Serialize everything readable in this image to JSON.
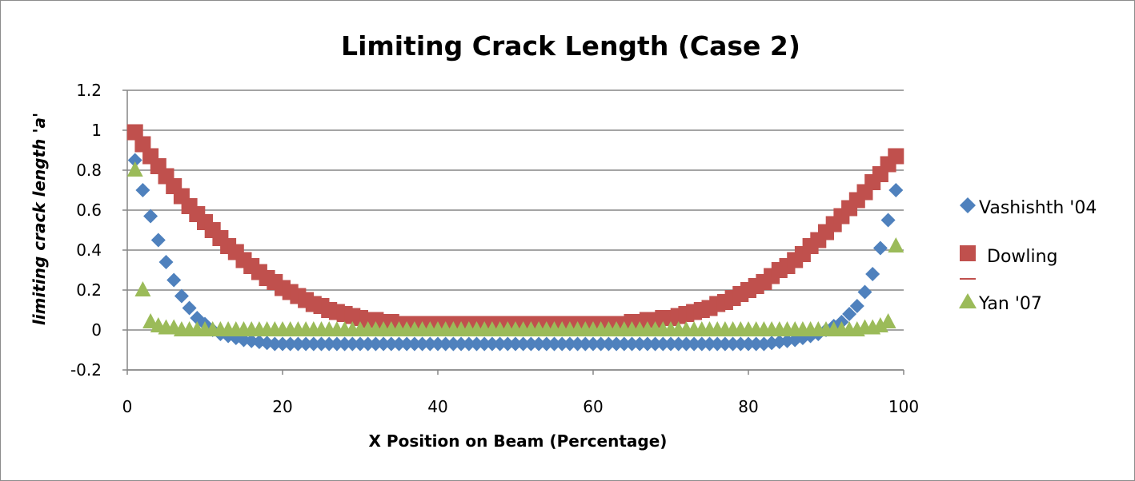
{
  "chart_data": {
    "type": "scatter",
    "title": "Limiting Crack Length (Case 2)",
    "xlabel": "X Position on Beam (Percentage)",
    "ylabel": "limiting crack length 'a'",
    "xlim": [
      0,
      100
    ],
    "ylim": [
      -0.2,
      1.2
    ],
    "x_ticks": [
      "0",
      "20",
      "40",
      "60",
      "80",
      "100"
    ],
    "y_ticks": [
      "1.2",
      "1",
      "0.8",
      "0.6",
      "0.4",
      "0.2",
      "0",
      "-0.2"
    ],
    "grid": "horizontal",
    "legend_position": "right",
    "colors": {
      "vashishth": "#4f81bd",
      "dowling": "#c0504d",
      "yan": "#9bbb59",
      "grid": "#868686"
    },
    "series": [
      {
        "name": "Vashishth '04",
        "marker": "diamond",
        "x": [
          1,
          2,
          3,
          4,
          5,
          6,
          7,
          8,
          9,
          10,
          11,
          12,
          13,
          14,
          15,
          16,
          17,
          18,
          19,
          20,
          21,
          22,
          23,
          24,
          25,
          26,
          27,
          28,
          29,
          30,
          31,
          32,
          33,
          34,
          35,
          36,
          37,
          38,
          39,
          40,
          41,
          42,
          43,
          44,
          45,
          46,
          47,
          48,
          49,
          50,
          51,
          52,
          53,
          54,
          55,
          56,
          57,
          58,
          59,
          60,
          61,
          62,
          63,
          64,
          65,
          66,
          67,
          68,
          69,
          70,
          71,
          72,
          73,
          74,
          75,
          76,
          77,
          78,
          79,
          80,
          81,
          82,
          83,
          84,
          85,
          86,
          87,
          88,
          89,
          90,
          91,
          92,
          93,
          94,
          95,
          96,
          97,
          98,
          99
        ],
        "y": [
          0.85,
          0.7,
          0.57,
          0.45,
          0.34,
          0.25,
          0.17,
          0.11,
          0.06,
          0.03,
          0.0,
          -0.02,
          -0.03,
          -0.04,
          -0.05,
          -0.055,
          -0.06,
          -0.065,
          -0.07,
          -0.07,
          -0.07,
          -0.07,
          -0.07,
          -0.07,
          -0.07,
          -0.07,
          -0.07,
          -0.07,
          -0.07,
          -0.07,
          -0.07,
          -0.07,
          -0.07,
          -0.07,
          -0.07,
          -0.07,
          -0.07,
          -0.07,
          -0.07,
          -0.07,
          -0.07,
          -0.07,
          -0.07,
          -0.07,
          -0.07,
          -0.07,
          -0.07,
          -0.07,
          -0.07,
          -0.07,
          -0.07,
          -0.07,
          -0.07,
          -0.07,
          -0.07,
          -0.07,
          -0.07,
          -0.07,
          -0.07,
          -0.07,
          -0.07,
          -0.07,
          -0.07,
          -0.07,
          -0.07,
          -0.07,
          -0.07,
          -0.07,
          -0.07,
          -0.07,
          -0.07,
          -0.07,
          -0.07,
          -0.07,
          -0.07,
          -0.07,
          -0.07,
          -0.07,
          -0.07,
          -0.07,
          -0.07,
          -0.07,
          -0.065,
          -0.06,
          -0.055,
          -0.05,
          -0.04,
          -0.03,
          -0.02,
          0.0,
          0.02,
          0.04,
          0.08,
          0.12,
          0.19,
          0.28,
          0.41,
          0.55,
          0.7
        ]
      },
      {
        "name": "Dowling",
        "marker": "square",
        "x": [
          1,
          2,
          3,
          4,
          5,
          6,
          7,
          8,
          9,
          10,
          11,
          12,
          13,
          14,
          15,
          16,
          17,
          18,
          19,
          20,
          21,
          22,
          23,
          24,
          25,
          26,
          27,
          28,
          29,
          30,
          31,
          32,
          33,
          34,
          35,
          36,
          37,
          38,
          39,
          40,
          41,
          42,
          43,
          44,
          45,
          46,
          47,
          48,
          49,
          50,
          51,
          52,
          53,
          54,
          55,
          56,
          57,
          58,
          59,
          60,
          61,
          62,
          63,
          64,
          65,
          66,
          67,
          68,
          69,
          70,
          71,
          72,
          73,
          74,
          75,
          76,
          77,
          78,
          79,
          80,
          81,
          82,
          83,
          84,
          85,
          86,
          87,
          88,
          89,
          90,
          91,
          92,
          93,
          94,
          95,
          96,
          97,
          98,
          99
        ],
        "y": [
          0.99,
          0.93,
          0.87,
          0.82,
          0.77,
          0.72,
          0.67,
          0.62,
          0.58,
          0.54,
          0.5,
          0.46,
          0.42,
          0.39,
          0.35,
          0.32,
          0.29,
          0.26,
          0.24,
          0.21,
          0.19,
          0.17,
          0.15,
          0.13,
          0.12,
          0.1,
          0.09,
          0.08,
          0.07,
          0.06,
          0.05,
          0.05,
          0.04,
          0.04,
          0.03,
          0.03,
          0.03,
          0.03,
          0.03,
          0.03,
          0.03,
          0.03,
          0.03,
          0.03,
          0.03,
          0.03,
          0.03,
          0.03,
          0.03,
          0.03,
          0.03,
          0.03,
          0.03,
          0.03,
          0.03,
          0.03,
          0.03,
          0.03,
          0.03,
          0.03,
          0.03,
          0.03,
          0.03,
          0.03,
          0.04,
          0.04,
          0.05,
          0.05,
          0.06,
          0.06,
          0.07,
          0.08,
          0.09,
          0.1,
          0.11,
          0.13,
          0.14,
          0.16,
          0.18,
          0.2,
          0.22,
          0.24,
          0.27,
          0.3,
          0.32,
          0.35,
          0.38,
          0.42,
          0.45,
          0.49,
          0.53,
          0.57,
          0.61,
          0.65,
          0.69,
          0.74,
          0.78,
          0.83,
          0.87
        ]
      },
      {
        "name": "Yan '07",
        "marker": "triangle",
        "x": [
          1,
          2,
          3,
          4,
          5,
          6,
          7,
          8,
          9,
          10,
          11,
          12,
          13,
          14,
          15,
          16,
          17,
          18,
          19,
          20,
          21,
          22,
          23,
          24,
          25,
          26,
          27,
          28,
          29,
          30,
          31,
          32,
          33,
          34,
          35,
          36,
          37,
          38,
          39,
          40,
          41,
          42,
          43,
          44,
          45,
          46,
          47,
          48,
          49,
          50,
          51,
          52,
          53,
          54,
          55,
          56,
          57,
          58,
          59,
          60,
          61,
          62,
          63,
          64,
          65,
          66,
          67,
          68,
          69,
          70,
          71,
          72,
          73,
          74,
          75,
          76,
          77,
          78,
          79,
          80,
          81,
          82,
          83,
          84,
          85,
          86,
          87,
          88,
          89,
          90,
          91,
          92,
          93,
          94,
          95,
          96,
          97,
          98,
          99
        ],
        "y": [
          0.8,
          0.2,
          0.04,
          0.02,
          0.01,
          0.01,
          0.0,
          0.0,
          0.0,
          0.0,
          0.0,
          0.0,
          0.0,
          0.0,
          0.0,
          0.0,
          0.0,
          0.0,
          0.0,
          0.0,
          0.0,
          0.0,
          0.0,
          0.0,
          0.0,
          0.0,
          0.0,
          0.0,
          0.0,
          0.0,
          0.0,
          0.0,
          0.0,
          0.0,
          0.0,
          0.0,
          0.0,
          0.0,
          0.0,
          0.0,
          0.0,
          0.0,
          0.0,
          0.0,
          0.0,
          0.0,
          0.0,
          0.0,
          0.0,
          0.0,
          0.0,
          0.0,
          0.0,
          0.0,
          0.0,
          0.0,
          0.0,
          0.0,
          0.0,
          0.0,
          0.0,
          0.0,
          0.0,
          0.0,
          0.0,
          0.0,
          0.0,
          0.0,
          0.0,
          0.0,
          0.0,
          0.0,
          0.0,
          0.0,
          0.0,
          0.0,
          0.0,
          0.0,
          0.0,
          0.0,
          0.0,
          0.0,
          0.0,
          0.0,
          0.0,
          0.0,
          0.0,
          0.0,
          0.0,
          0.0,
          0.0,
          0.0,
          0.0,
          0.0,
          0.01,
          0.01,
          0.02,
          0.04,
          0.42
        ]
      }
    ]
  }
}
